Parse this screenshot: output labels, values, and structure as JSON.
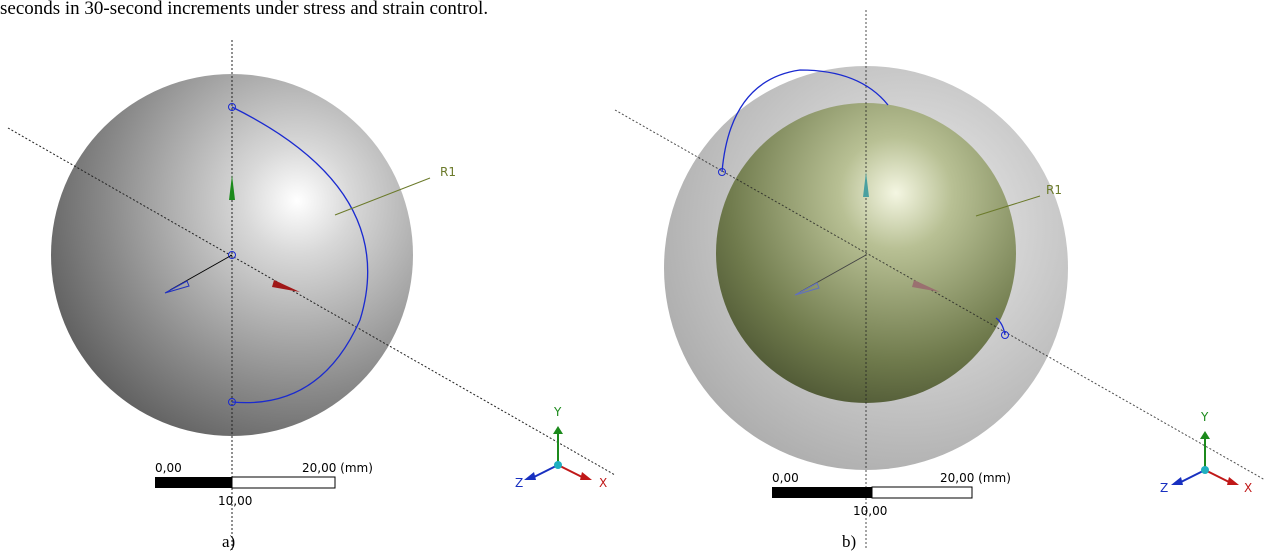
{
  "caption_line": "seconds in 30-second increments under stress and strain control.",
  "panels": [
    {
      "label": "a)",
      "annotation": "R1",
      "scale": {
        "start": "0,00",
        "end": "20,00 (mm)",
        "mid": "10,00"
      },
      "axes": {
        "y": "Y",
        "z": "Z",
        "x": "X"
      }
    },
    {
      "label": "b)",
      "annotation": "R1",
      "scale": {
        "start": "0,00",
        "end": "20,00 (mm)",
        "mid": "10,00"
      },
      "axes": {
        "y": "Y",
        "z": "Z",
        "x": "X"
      }
    }
  ]
}
